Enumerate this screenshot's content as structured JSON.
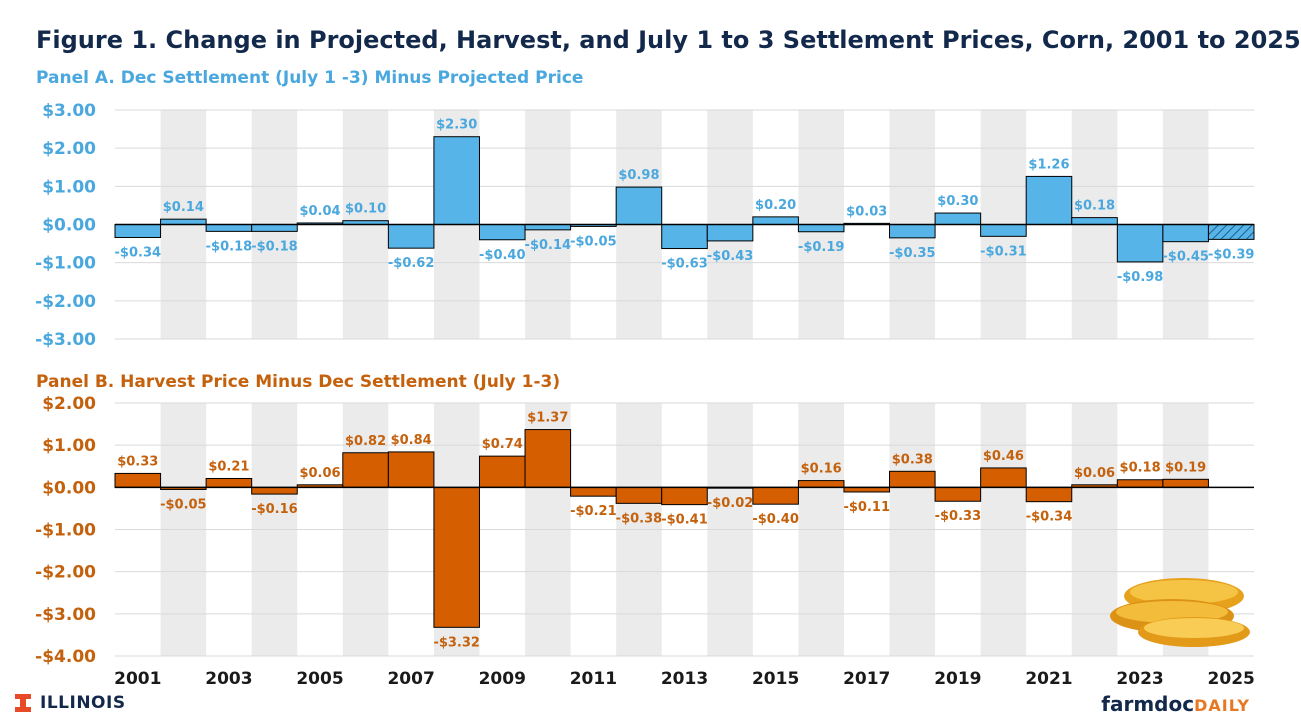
{
  "title": "Figure 1. Change in Projected, Harvest, and July 1 to 3 Settlement Prices, Corn, 2001 to 2025",
  "colors": {
    "title": "#13294B",
    "panelA": "#56B4E9",
    "panelA_label": "#4AA8DE",
    "panelB": "#D55E00",
    "panelB_label": "#C4610D",
    "band": "#EBEBEB",
    "grid": "#D9D9D9"
  },
  "footer": {
    "brand_left": "ILLINOIS",
    "brand_right_main": "farmdoc",
    "brand_right_sub": "DAILY"
  },
  "decoration": {
    "image": "corn-cobs"
  },
  "chart_data": [
    {
      "type": "bar",
      "title": "Panel A. Dec Settlement (July 1 -3) Minus Projected Price",
      "categories": [
        "2001",
        "2002",
        "2003",
        "2004",
        "2005",
        "2006",
        "2007",
        "2008",
        "2009",
        "2010",
        "2011",
        "2012",
        "2013",
        "2014",
        "2015",
        "2016",
        "2017",
        "2018",
        "2019",
        "2020",
        "2021",
        "2022",
        "2023",
        "2024",
        "2025"
      ],
      "tick_labels": [
        "2001",
        "2003",
        "2005",
        "2007",
        "2009",
        "2011",
        "2013",
        "2015",
        "2017",
        "2019",
        "2021",
        "2023",
        "2025"
      ],
      "values": [
        -0.34,
        0.14,
        -0.18,
        -0.18,
        0.04,
        0.1,
        -0.62,
        2.3,
        -0.4,
        -0.14,
        -0.05,
        0.98,
        -0.63,
        -0.43,
        0.2,
        -0.19,
        0.03,
        -0.35,
        0.3,
        -0.31,
        1.26,
        0.18,
        -0.98,
        -0.45,
        -0.39
      ],
      "labels": [
        "-$0.34",
        "$0.14",
        "-$0.18",
        "-$0.18",
        "$0.04",
        "$0.10",
        "-$0.62",
        "$2.30",
        "-$0.40",
        "-$0.14",
        "-$0.05",
        "$0.98",
        "-$0.63",
        "-$0.43",
        "$0.20",
        "-$0.19",
        "$0.03",
        "-$0.35",
        "$0.30",
        "-$0.31",
        "$1.26",
        "$0.18",
        "-$0.98",
        "-$0.45",
        "-$0.39"
      ],
      "hatched_category": "2025",
      "ylim": [
        -3,
        3
      ],
      "yticks": [
        3,
        2,
        1,
        0,
        -1,
        -2,
        -3
      ],
      "ytick_labels": [
        "$3.00",
        "$2.00",
        "$1.00",
        "$0.00",
        "-$1.00",
        "-$2.00",
        "-$3.00"
      ],
      "grid": true
    },
    {
      "type": "bar",
      "title": "Panel B. Harvest Price Minus Dec Settlement (July 1-3)",
      "categories": [
        "2001",
        "2002",
        "2003",
        "2004",
        "2005",
        "2006",
        "2007",
        "2008",
        "2009",
        "2010",
        "2011",
        "2012",
        "2013",
        "2014",
        "2015",
        "2016",
        "2017",
        "2018",
        "2019",
        "2020",
        "2021",
        "2022",
        "2023",
        "2024",
        "2025"
      ],
      "tick_labels": [
        "2001",
        "2003",
        "2005",
        "2007",
        "2009",
        "2011",
        "2013",
        "2015",
        "2017",
        "2019",
        "2021",
        "2023",
        "2025"
      ],
      "values": [
        0.33,
        -0.05,
        0.21,
        -0.16,
        0.06,
        0.82,
        0.84,
        -3.32,
        0.74,
        1.37,
        -0.21,
        -0.38,
        -0.41,
        -0.02,
        -0.4,
        0.16,
        -0.11,
        0.38,
        -0.33,
        0.46,
        -0.34,
        0.06,
        0.18,
        0.19,
        null
      ],
      "labels": [
        "$0.33",
        "-$0.05",
        "$0.21",
        "-$0.16",
        "$0.06",
        "$0.82",
        "$0.84",
        "-$3.32",
        "$0.74",
        "$1.37",
        "-$0.21",
        "-$0.38",
        "-$0.41",
        "-$0.02",
        "-$0.40",
        "$0.16",
        "-$0.11",
        "$0.38",
        "-$0.33",
        "$0.46",
        "-$0.34",
        "$0.06",
        "$0.18",
        "$0.19",
        ""
      ],
      "ylim": [
        -4,
        2
      ],
      "yticks": [
        2,
        1,
        0,
        -1,
        -2,
        -3,
        -4
      ],
      "ytick_labels": [
        "$2.00",
        "$1.00",
        "$0.00",
        "-$1.00",
        "-$2.00",
        "-$3.00",
        "-$4.00"
      ],
      "grid": true
    }
  ]
}
